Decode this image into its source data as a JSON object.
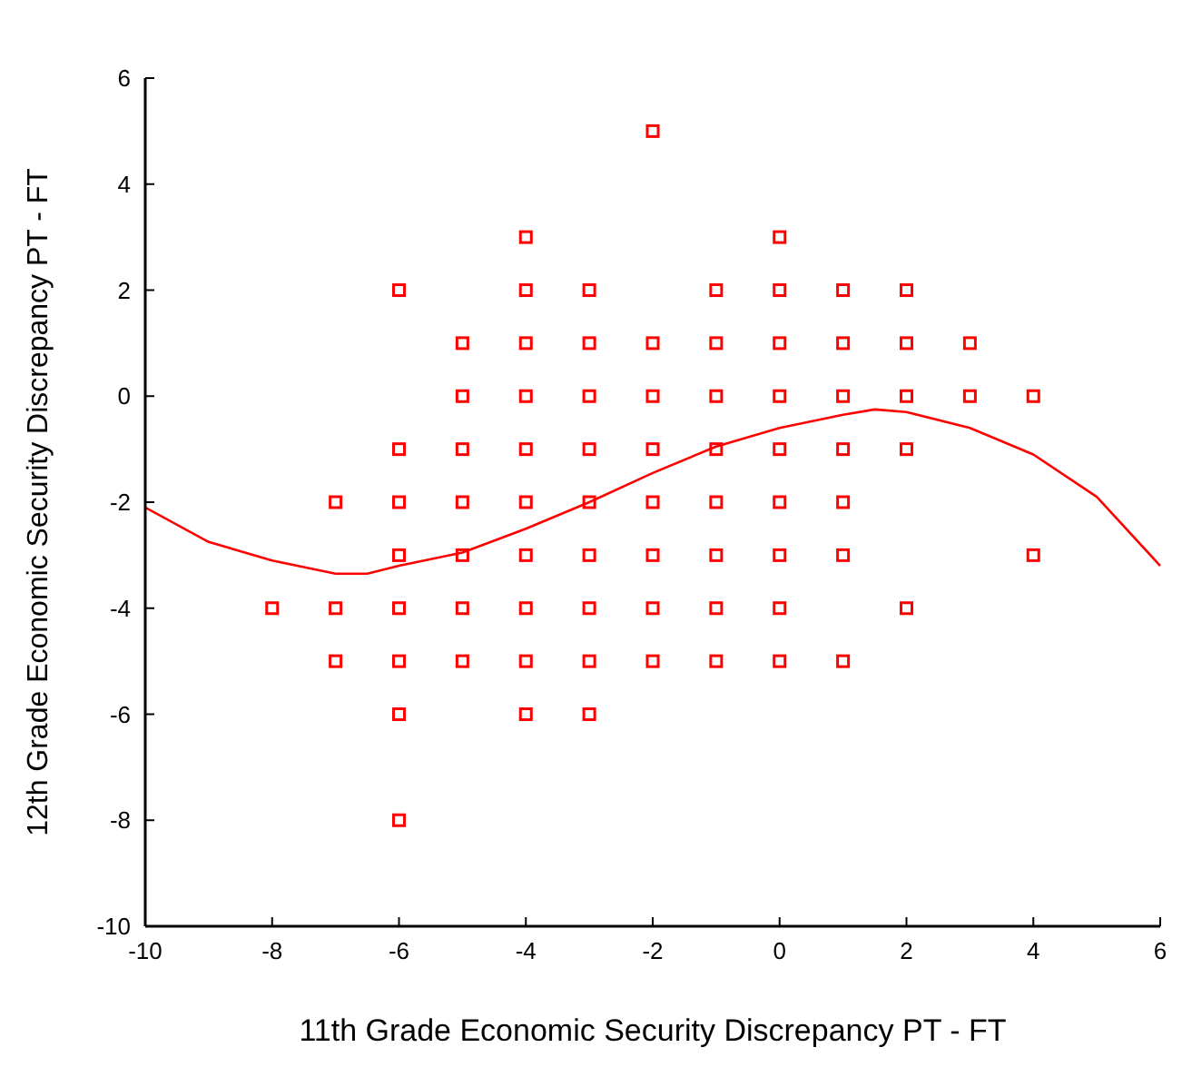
{
  "chart_data": {
    "type": "scatter",
    "xlabel": "11th Grade Economic Security Discrepancy PT - FT",
    "ylabel": "12th Grade Economic Security Discrepancy PT - FT",
    "xlim": [
      -10,
      6
    ],
    "ylim": [
      -10,
      6
    ],
    "xticks": [
      -10,
      -8,
      -6,
      -4,
      -2,
      0,
      2,
      4,
      6
    ],
    "yticks": [
      -10,
      -8,
      -6,
      -4,
      -2,
      0,
      2,
      4,
      6
    ],
    "grid": false,
    "series": [
      {
        "color": "#ff0000",
        "marker": "square",
        "x": [
          -8,
          -7,
          -7,
          -7,
          -6,
          -6,
          -6,
          -6,
          -6,
          -6,
          -6,
          -6,
          -5,
          -5,
          -5,
          -5,
          -5,
          -5,
          -5,
          -4,
          -4,
          -4,
          -4,
          -4,
          -4,
          -4,
          -4,
          -4,
          -4,
          -3,
          -3,
          -3,
          -3,
          -3,
          -3,
          -3,
          -3,
          -3,
          -2,
          -2,
          -2,
          -2,
          -2,
          -2,
          -2,
          -2,
          -1,
          -1,
          -1,
          -1,
          -1,
          -1,
          -1,
          -1,
          0,
          0,
          0,
          0,
          0,
          0,
          0,
          0,
          0,
          1,
          1,
          1,
          1,
          1,
          1,
          1,
          2,
          2,
          2,
          2,
          2,
          3,
          3,
          4,
          4
        ],
        "values": [
          -4,
          -2,
          -4,
          -5,
          2,
          -1,
          -2,
          -3,
          -4,
          -5,
          -6,
          -8,
          1,
          0,
          -1,
          -2,
          -3,
          -4,
          -5,
          3,
          2,
          1,
          0,
          -1,
          -2,
          -3,
          -4,
          -5,
          -6,
          2,
          1,
          0,
          -1,
          -2,
          -3,
          -4,
          -5,
          -6,
          5,
          1,
          0,
          -1,
          -2,
          -3,
          -4,
          -5,
          2,
          1,
          0,
          -1,
          -2,
          -3,
          -4,
          -5,
          3,
          2,
          1,
          0,
          -1,
          -2,
          -3,
          -4,
          -5,
          2,
          1,
          0,
          -1,
          -2,
          -3,
          -5,
          2,
          1,
          0,
          -1,
          -4,
          1,
          0,
          0,
          -3
        ]
      },
      {
        "type": "line",
        "color": "#ff0000",
        "marker": "none",
        "line_style": "solid",
        "x": [
          -10,
          -9,
          -8,
          -7,
          -6.5,
          -6,
          -5,
          -4,
          -3,
          -2,
          -1,
          0,
          1,
          1.5,
          2,
          3,
          4,
          5,
          6
        ],
        "values": [
          -2.1,
          -2.75,
          -3.1,
          -3.35,
          -3.35,
          -3.2,
          -2.95,
          -2.5,
          -2.0,
          -1.45,
          -0.95,
          -0.6,
          -0.35,
          -0.25,
          -0.3,
          -0.6,
          -1.1,
          -1.9,
          -3.2
        ]
      }
    ]
  }
}
